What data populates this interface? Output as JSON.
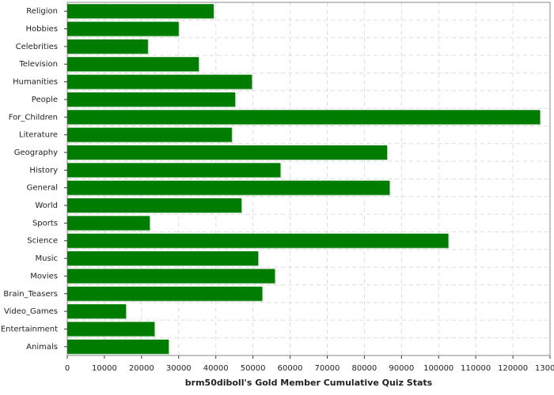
{
  "chart_data": {
    "type": "bar",
    "orientation": "horizontal",
    "title": "brm50diboll's Gold Member Cumulative Quiz Stats",
    "categories": [
      "Religion",
      "Hobbies",
      "Celebrities",
      "Television",
      "Humanities",
      "People",
      "For_Children",
      "Literature",
      "Geography",
      "History",
      "General",
      "World",
      "Sports",
      "Science",
      "Music",
      "Movies",
      "Brain_Teasers",
      "Video_Games",
      "Entertainment",
      "Animals"
    ],
    "values": [
      39400,
      30000,
      21700,
      35400,
      49700,
      45200,
      127300,
      44300,
      86100,
      57400,
      86800,
      46900,
      22200,
      102600,
      51400,
      55900,
      52500,
      15800,
      23500,
      27300
    ],
    "color": "#007c00",
    "xlim": [
      0,
      130000
    ],
    "xticks": [
      0,
      10000,
      20000,
      30000,
      40000,
      50000,
      60000,
      70000,
      80000,
      90000,
      100000,
      110000,
      120000,
      130000
    ],
    "grid": true
  }
}
